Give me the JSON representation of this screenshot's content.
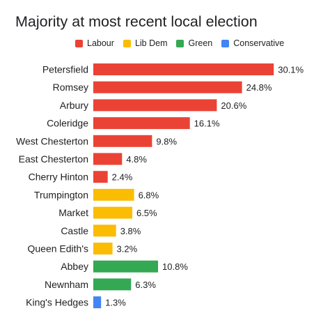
{
  "chart_data": {
    "type": "bar",
    "orientation": "horizontal",
    "title": "Majority at most recent local election",
    "xlabel": "",
    "ylabel": "",
    "xlim": [
      0,
      31
    ],
    "grid": false,
    "legend_position": "top",
    "legend": [
      {
        "name": "Labour",
        "color": "#ea4335"
      },
      {
        "name": "Lib Dem",
        "color": "#fbbc04"
      },
      {
        "name": "Green",
        "color": "#34a853"
      },
      {
        "name": "Conservative",
        "color": "#4285f4"
      }
    ],
    "categories": [
      "Petersfield",
      "Romsey",
      "Arbury",
      "Coleridge",
      "West Chesterton",
      "East Chesterton",
      "Cherry Hinton",
      "Trumpington",
      "Market",
      "Castle",
      "Queen Edith's",
      "Abbey",
      "Newnham",
      "King's Hedges"
    ],
    "values": [
      30.1,
      24.8,
      20.6,
      16.1,
      9.8,
      4.8,
      2.4,
      6.8,
      6.5,
      3.8,
      3.2,
      10.8,
      6.3,
      1.3
    ],
    "value_labels": [
      "30.1%",
      "24.8%",
      "20.6%",
      "16.1%",
      "9.8%",
      "4.8%",
      "2.4%",
      "6.8%",
      "6.5%",
      "3.8%",
      "3.2%",
      "10.8%",
      "6.3%",
      "1.3%"
    ],
    "parties": [
      "Labour",
      "Labour",
      "Labour",
      "Labour",
      "Labour",
      "Labour",
      "Labour",
      "Lib Dem",
      "Lib Dem",
      "Lib Dem",
      "Lib Dem",
      "Green",
      "Green",
      "Conservative"
    ]
  }
}
